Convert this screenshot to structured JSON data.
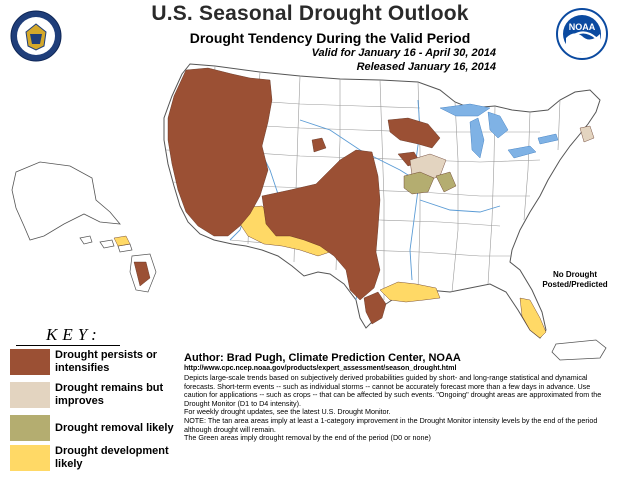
{
  "header": {
    "title": "U.S. Seasonal Drought Outlook",
    "subtitle": "Drought Tendency During the Valid Period",
    "valid": "Valid for January 16 - April 30, 2014",
    "released": "Released January 16, 2014"
  },
  "logos": [
    {
      "name": "doc-seal-logo"
    },
    {
      "name": "noaa-logo",
      "text": "NOAA"
    }
  ],
  "key": {
    "title": "KEY:",
    "items": [
      {
        "label": "Drought persists or intensifies",
        "color": "#9b5034"
      },
      {
        "label": "Drought remains but improves",
        "color": "#e3d4c0"
      },
      {
        "label": "Drought removal likely",
        "color": "#b4ad70"
      },
      {
        "label": "Drought development likely",
        "color": "#ffd966"
      }
    ]
  },
  "author": "Author: Brad Pugh, Climate Prediction Center, NOAA",
  "url": "http://www.cpc.ncep.noaa.gov/products/expert_assessment/season_drought.html",
  "notes": [
    "Depicts large-scale trends based on subjectively derived probabilities guided by short- and long-range statistical and dynamical forecasts. Short-term events -- such as individual storms -- cannot be accurately forecast more than a few days in advance. Use caution for applications -- such as crops -- that can be affected by such events. \"Ongoing\" drought areas are approximated from the Drought Monitor (D1 to D4 intensity).",
    "For weekly drought updates, see the latest U.S. Drought Monitor.",
    "NOTE: The tan area areas imply at least a 1-category improvement in the Drought Monitor intensity levels by the end of the period although drought will remain.",
    "The Green areas imply drought removal by the end of the period (D0 or none)"
  ],
  "puerto_rico_note": "No Drought Posted/Predicted",
  "colors": {
    "land": "#ffffff",
    "border": "#8a8a8a",
    "water": "#5a9bd5",
    "lake": "#7fb2e5",
    "title": "#2a2a2a"
  }
}
